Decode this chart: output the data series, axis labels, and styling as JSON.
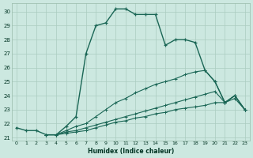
{
  "xlabel": "Humidex (Indice chaleur)",
  "bg_color": "#cce8e0",
  "grid_color": "#aaccc0",
  "line_color": "#1a6655",
  "series": [
    {
      "x": [
        0,
        1,
        2,
        3,
        4,
        5,
        6,
        7,
        8,
        9,
        10,
        11,
        12,
        13,
        14,
        15,
        16,
        17,
        18,
        19,
        20,
        21,
        22,
        23
      ],
      "y": [
        21.7,
        21.5,
        21.5,
        21.2,
        21.2,
        21.8,
        22.5,
        27.0,
        29.0,
        29.2,
        30.2,
        30.2,
        29.8,
        29.8,
        29.8,
        27.6,
        28.0,
        28.0,
        27.8,
        25.8,
        25.0,
        23.5,
        24.0,
        23.0
      ]
    },
    {
      "x": [
        3,
        4,
        5,
        6,
        7,
        8,
        9,
        10,
        11,
        12,
        13,
        14,
        15,
        16,
        17,
        18,
        19,
        20,
        21,
        22,
        23
      ],
      "y": [
        21.2,
        21.2,
        21.5,
        21.8,
        22.0,
        22.5,
        23.0,
        23.5,
        23.8,
        24.2,
        24.5,
        24.8,
        25.0,
        25.2,
        25.5,
        25.7,
        25.8,
        25.0,
        23.5,
        24.0,
        23.0
      ]
    },
    {
      "x": [
        3,
        4,
        5,
        6,
        7,
        8,
        9,
        10,
        11,
        12,
        13,
        14,
        15,
        16,
        17,
        18,
        19,
        20,
        21,
        22,
        23
      ],
      "y": [
        21.2,
        21.2,
        21.4,
        21.5,
        21.7,
        21.9,
        22.1,
        22.3,
        22.5,
        22.7,
        22.9,
        23.1,
        23.3,
        23.5,
        23.7,
        23.9,
        24.1,
        24.3,
        23.5,
        24.0,
        23.0
      ]
    },
    {
      "x": [
        3,
        4,
        5,
        6,
        7,
        8,
        9,
        10,
        11,
        12,
        13,
        14,
        15,
        16,
        17,
        18,
        19,
        20,
        21,
        22,
        23
      ],
      "y": [
        21.2,
        21.2,
        21.3,
        21.4,
        21.5,
        21.7,
        21.9,
        22.1,
        22.2,
        22.4,
        22.5,
        22.7,
        22.8,
        23.0,
        23.1,
        23.2,
        23.3,
        23.5,
        23.5,
        23.8,
        23.0
      ]
    }
  ],
  "ylim": [
    20.8,
    30.6
  ],
  "xlim": [
    -0.5,
    23.5
  ],
  "yticks": [
    21,
    22,
    23,
    24,
    25,
    26,
    27,
    28,
    29,
    30
  ],
  "xticks": [
    0,
    1,
    2,
    3,
    4,
    5,
    6,
    7,
    8,
    9,
    10,
    11,
    12,
    13,
    14,
    15,
    16,
    17,
    18,
    19,
    20,
    21,
    22,
    23
  ]
}
